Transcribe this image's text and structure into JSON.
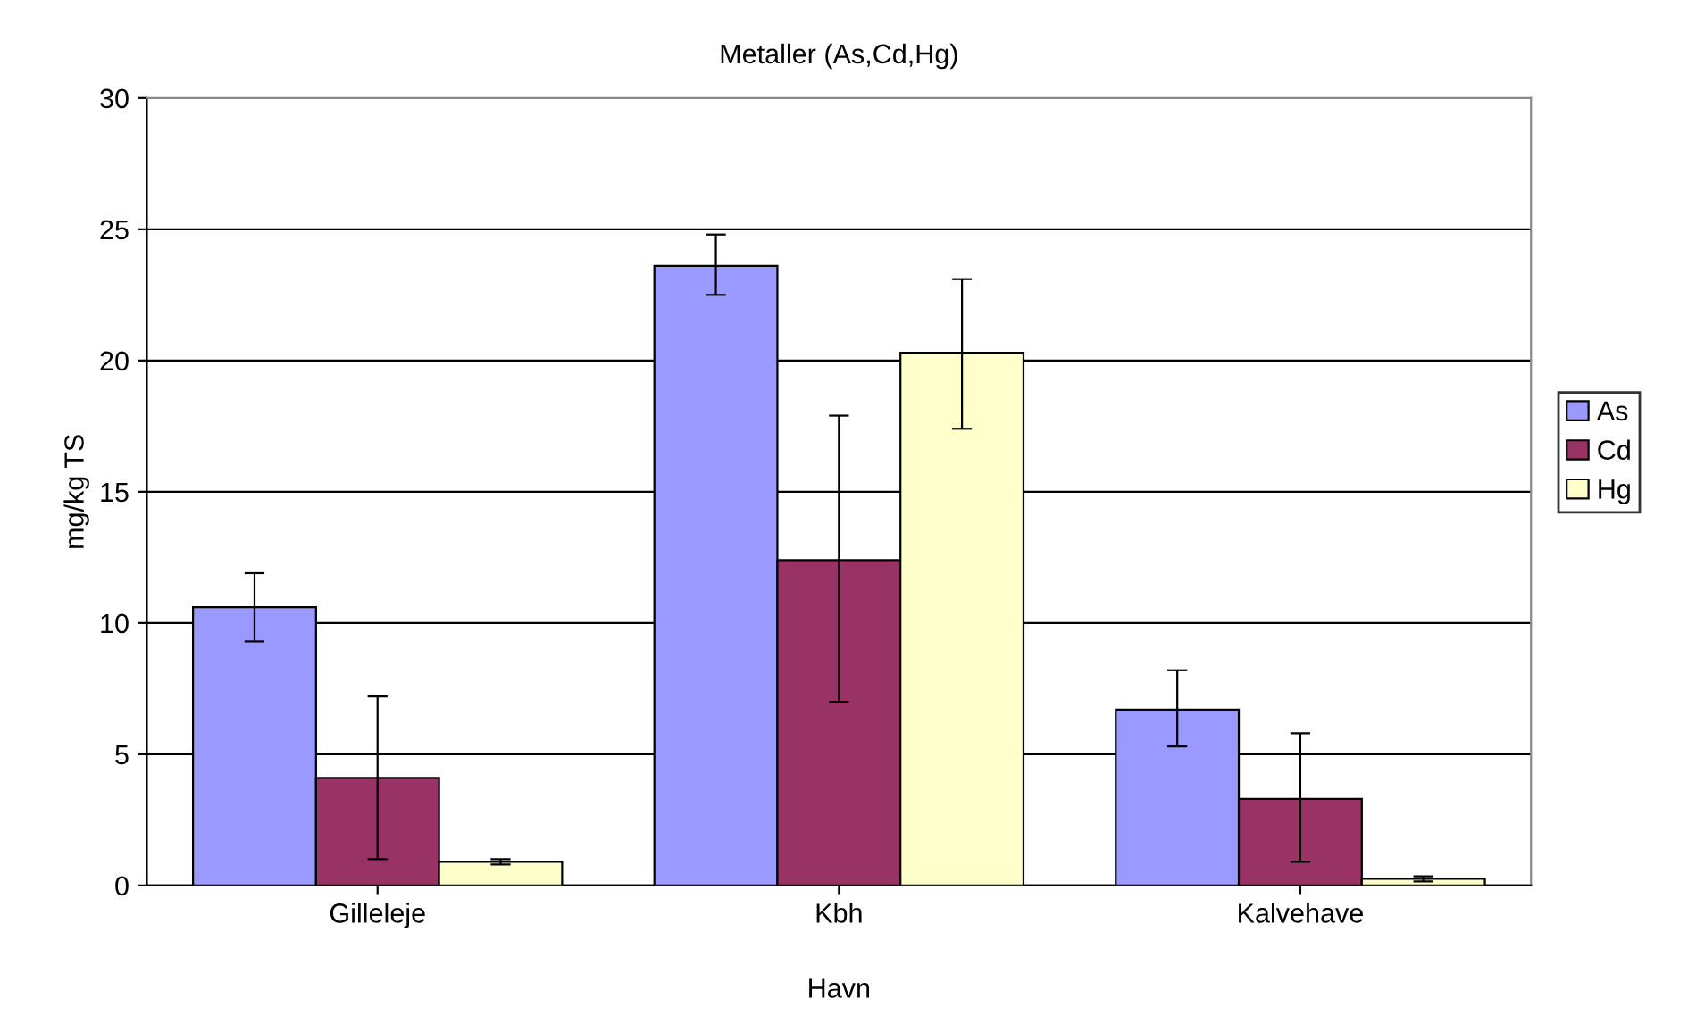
{
  "chart_data": {
    "type": "bar",
    "title": "Metaller (As,Cd,Hg)",
    "xlabel": "Havn",
    "ylabel": "mg/kg TS",
    "categories": [
      "Gilleleje",
      "Kbh",
      "Kalvehave"
    ],
    "series": [
      {
        "name": "As",
        "color": "#9999ff",
        "values": [
          10.6,
          23.6,
          6.7
        ],
        "errors": [
          [
            9.3,
            11.9
          ],
          [
            22.5,
            24.8
          ],
          [
            5.3,
            8.2
          ]
        ]
      },
      {
        "name": "Cd",
        "color": "#993366",
        "values": [
          4.1,
          12.4,
          3.3
        ],
        "errors": [
          [
            1.0,
            7.2
          ],
          [
            7.0,
            17.9
          ],
          [
            0.9,
            5.8
          ]
        ]
      },
      {
        "name": "Hg",
        "color": "#ffffcc",
        "values": [
          0.9,
          20.3,
          0.25
        ],
        "errors": [
          [
            0.8,
            1.0
          ],
          [
            17.4,
            23.1
          ],
          [
            0.15,
            0.35
          ]
        ]
      }
    ],
    "ylim": [
      0,
      30
    ],
    "yticks": [
      0,
      5,
      10,
      15,
      20,
      25,
      30
    ],
    "grid": "y",
    "legend": "right"
  }
}
